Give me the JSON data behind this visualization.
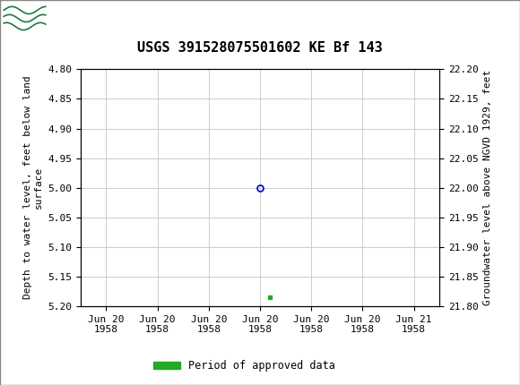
{
  "title": "USGS 391528075501602 KE Bf 143",
  "header_color": "#1a7a44",
  "header_border_color": "#555555",
  "bg_color": "#ffffff",
  "plot_bg_color": "#ffffff",
  "grid_color": "#cccccc",
  "left_ylabel_line1": "Depth to water level, feet below land",
  "left_ylabel_line2": "surface",
  "right_ylabel": "Groundwater level above NGVD 1929, feet",
  "ylim_left": [
    4.8,
    5.2
  ],
  "ylim_right": [
    21.8,
    22.2
  ],
  "yticks_left": [
    4.8,
    4.85,
    4.9,
    4.95,
    5.0,
    5.05,
    5.1,
    5.15,
    5.2
  ],
  "yticks_right": [
    21.8,
    21.85,
    21.9,
    21.95,
    22.0,
    22.05,
    22.1,
    22.15,
    22.2
  ],
  "xtick_positions": [
    0,
    1,
    2,
    3,
    4,
    5,
    6
  ],
  "xtick_labels": [
    "Jun 20\n1958",
    "Jun 20\n1958",
    "Jun 20\n1958",
    "Jun 20\n1958",
    "Jun 20\n1958",
    "Jun 20\n1958",
    "Jun 21\n1958"
  ],
  "data_point_x": 3.0,
  "data_point_y": 5.0,
  "data_point_color": "#0000cc",
  "data_point_marker": "o",
  "data_point_size": 5,
  "approved_x": 3.2,
  "approved_y": 5.185,
  "approved_color": "#22aa22",
  "legend_label": "Period of approved data",
  "font_family": "monospace",
  "tick_label_fontsize": 8,
  "axis_label_fontsize": 8,
  "title_fontsize": 11
}
